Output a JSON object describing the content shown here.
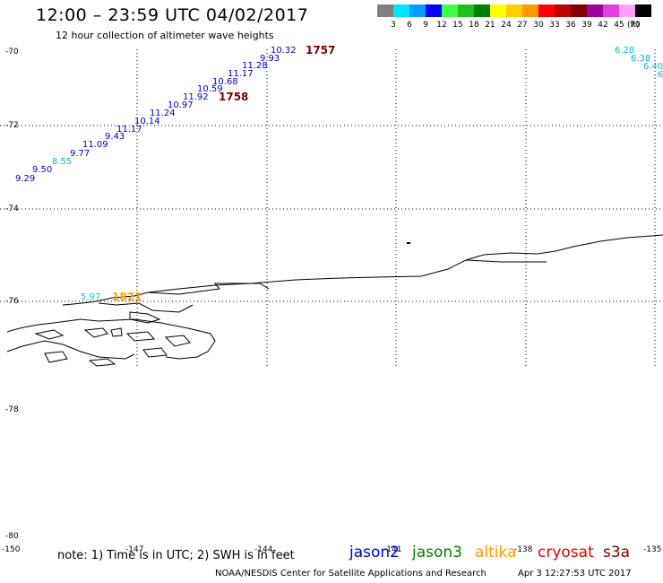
{
  "title": "12:00 – 23:59 UTC 04/02/2017",
  "subtitle": "12 hour collection of altimeter wave heights",
  "legend": {
    "units": "(ft)",
    "labels": [
      "3",
      "6",
      "9",
      "12",
      "15",
      "18",
      "21",
      "24",
      "27",
      "30",
      "33",
      "36",
      "39",
      "42",
      "45",
      "70"
    ],
    "colors": [
      "#808080",
      "#00e5ff",
      "#00a0ff",
      "#0000ff",
      "#40ff40",
      "#20c020",
      "#008000",
      "#ffff00",
      "#ffcc00",
      "#ff9900",
      "#ff0000",
      "#c00000",
      "#800000",
      "#a000a0",
      "#e040e0",
      "#ffa0ff",
      "#000000"
    ]
  },
  "lat_labels": [
    "-70",
    "-72",
    "-74",
    "-76",
    "-78",
    "-80"
  ],
  "lon_labels": [
    "-150",
    "-147",
    "-144",
    "-141",
    "-138",
    "-135"
  ],
  "wave_heights": [
    {
      "value": "10.32",
      "color": "#0000cc"
    },
    {
      "value": "9.93",
      "color": "#0000cc"
    },
    {
      "value": "11.28",
      "color": "#0000cc"
    },
    {
      "value": "11.17",
      "color": "#0000cc"
    },
    {
      "value": "10.68",
      "color": "#0000cc"
    },
    {
      "value": "10.59",
      "color": "#0000cc"
    },
    {
      "value": "11.92",
      "color": "#0000cc"
    },
    {
      "value": "10.97",
      "color": "#0000cc"
    },
    {
      "value": "11.24",
      "color": "#0000cc"
    },
    {
      "value": "10.14",
      "color": "#0000cc"
    },
    {
      "value": "11.17",
      "color": "#0000cc"
    },
    {
      "value": "9.43",
      "color": "#0000cc"
    },
    {
      "value": "11.09",
      "color": "#0000cc"
    },
    {
      "value": "9.77",
      "color": "#0000cc"
    },
    {
      "value": "8.55",
      "color": "#00b8e0"
    },
    {
      "value": "9.50",
      "color": "#0000cc"
    },
    {
      "value": "9.29",
      "color": "#0000cc"
    },
    {
      "value": "5.97",
      "color": "#00c8e8"
    },
    {
      "value": "6.28",
      "color": "#00b8e0"
    },
    {
      "value": "6.38",
      "color": "#00b8e0"
    },
    {
      "value": "6.40",
      "color": "#00b8e0"
    },
    {
      "value": "6",
      "color": "#00b8e0"
    }
  ],
  "pass_times": [
    {
      "value": "1757",
      "color": "#800000"
    },
    {
      "value": "1758",
      "color": "#800000"
    },
    {
      "value": "1821",
      "color": "#ff9900"
    }
  ],
  "note": "note: 1) Time is in UTC; 2) SWH is in feet",
  "satellites": [
    {
      "name": "jason2",
      "color": "#0000cc"
    },
    {
      "name": "jason3",
      "color": "#008000"
    },
    {
      "name": "altika",
      "color": "#ff9900"
    },
    {
      "name": "cryosat",
      "color": "#dd0000"
    },
    {
      "name": "s3a",
      "color": "#800000"
    }
  ],
  "credit": "NOAA/NESDIS Center for Satellite Applications and Research",
  "timestamp": "Apr  3 12:27:53 UTC 2017"
}
